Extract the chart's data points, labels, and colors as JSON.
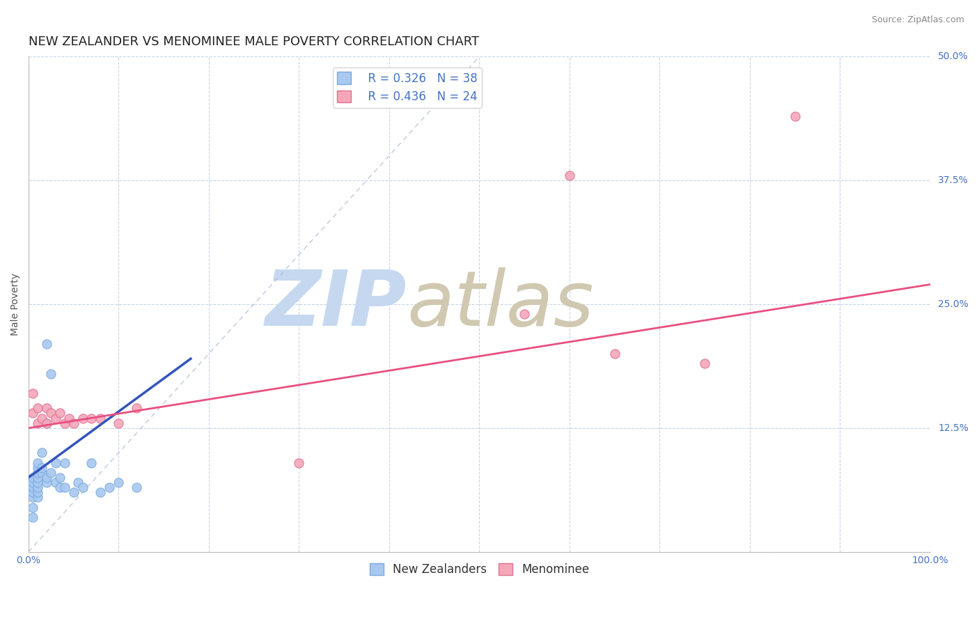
{
  "title": "NEW ZEALANDER VS MENOMINEE MALE POVERTY CORRELATION CHART",
  "source_text": "Source: ZipAtlas.com",
  "ylabel": "Male Poverty",
  "xlim": [
    0.0,
    1.0
  ],
  "ylim": [
    0.0,
    0.5
  ],
  "xticks": [
    0.0,
    0.1,
    0.2,
    0.3,
    0.4,
    0.5,
    0.6,
    0.7,
    0.8,
    0.9,
    1.0
  ],
  "xticklabels": [
    "0.0%",
    "",
    "",
    "",
    "",
    "",
    "",
    "",
    "",
    "",
    "100.0%"
  ],
  "yticks": [
    0.0,
    0.125,
    0.25,
    0.375,
    0.5
  ],
  "yticklabels": [
    "",
    "12.5%",
    "25.0%",
    "37.5%",
    "50.0%"
  ],
  "nz_color": "#a8c8f0",
  "nz_edge_color": "#7aabdf",
  "men_color": "#f4a7b9",
  "men_edge_color": "#e07090",
  "trend_nz_color": "#3355bb",
  "trend_men_color": "#e85080",
  "R_nz": 0.326,
  "N_nz": 38,
  "R_men": 0.436,
  "N_men": 24,
  "nz_x": [
    0.005,
    0.005,
    0.005,
    0.005,
    0.005,
    0.005,
    0.005,
    0.01,
    0.01,
    0.01,
    0.01,
    0.01,
    0.01,
    0.01,
    0.01,
    0.015,
    0.015,
    0.015,
    0.02,
    0.02,
    0.02,
    0.02,
    0.025,
    0.025,
    0.03,
    0.03,
    0.035,
    0.035,
    0.04,
    0.04,
    0.05,
    0.055,
    0.06,
    0.07,
    0.08,
    0.09,
    0.1,
    0.12
  ],
  "nz_y": [
    0.035,
    0.045,
    0.055,
    0.06,
    0.065,
    0.07,
    0.075,
    0.055,
    0.06,
    0.065,
    0.07,
    0.075,
    0.08,
    0.085,
    0.09,
    0.08,
    0.085,
    0.1,
    0.07,
    0.075,
    0.13,
    0.21,
    0.08,
    0.18,
    0.07,
    0.09,
    0.065,
    0.075,
    0.065,
    0.09,
    0.06,
    0.07,
    0.065,
    0.09,
    0.06,
    0.065,
    0.07,
    0.065
  ],
  "men_x": [
    0.005,
    0.005,
    0.01,
    0.01,
    0.015,
    0.02,
    0.02,
    0.025,
    0.03,
    0.035,
    0.04,
    0.045,
    0.05,
    0.06,
    0.07,
    0.08,
    0.1,
    0.12,
    0.3,
    0.55,
    0.6,
    0.65,
    0.75,
    0.85
  ],
  "men_y": [
    0.14,
    0.16,
    0.13,
    0.145,
    0.135,
    0.13,
    0.145,
    0.14,
    0.135,
    0.14,
    0.13,
    0.135,
    0.13,
    0.135,
    0.135,
    0.135,
    0.13,
    0.145,
    0.09,
    0.24,
    0.38,
    0.2,
    0.19,
    0.44
  ],
  "nz_trend_x0": 0.0,
  "nz_trend_x1": 0.18,
  "men_trend_x0": 0.0,
  "men_trend_x1": 1.0,
  "nz_trend_y0": 0.075,
  "nz_trend_y1": 0.195,
  "men_trend_y0": 0.125,
  "men_trend_y1": 0.27,
  "ref_line_x": [
    0.0,
    0.5
  ],
  "ref_line_y": [
    0.0,
    0.5
  ],
  "watermark_zip": "ZIP",
  "watermark_atlas": "atlas",
  "watermark_color_zip": "#c5d8f0",
  "watermark_color_atlas": "#d0c8b0",
  "background_color": "#ffffff",
  "grid_color": "#c8d4e8",
  "title_fontsize": 13,
  "axis_label_fontsize": 10,
  "tick_fontsize": 10,
  "legend_fontsize": 12,
  "source_fontsize": 9
}
